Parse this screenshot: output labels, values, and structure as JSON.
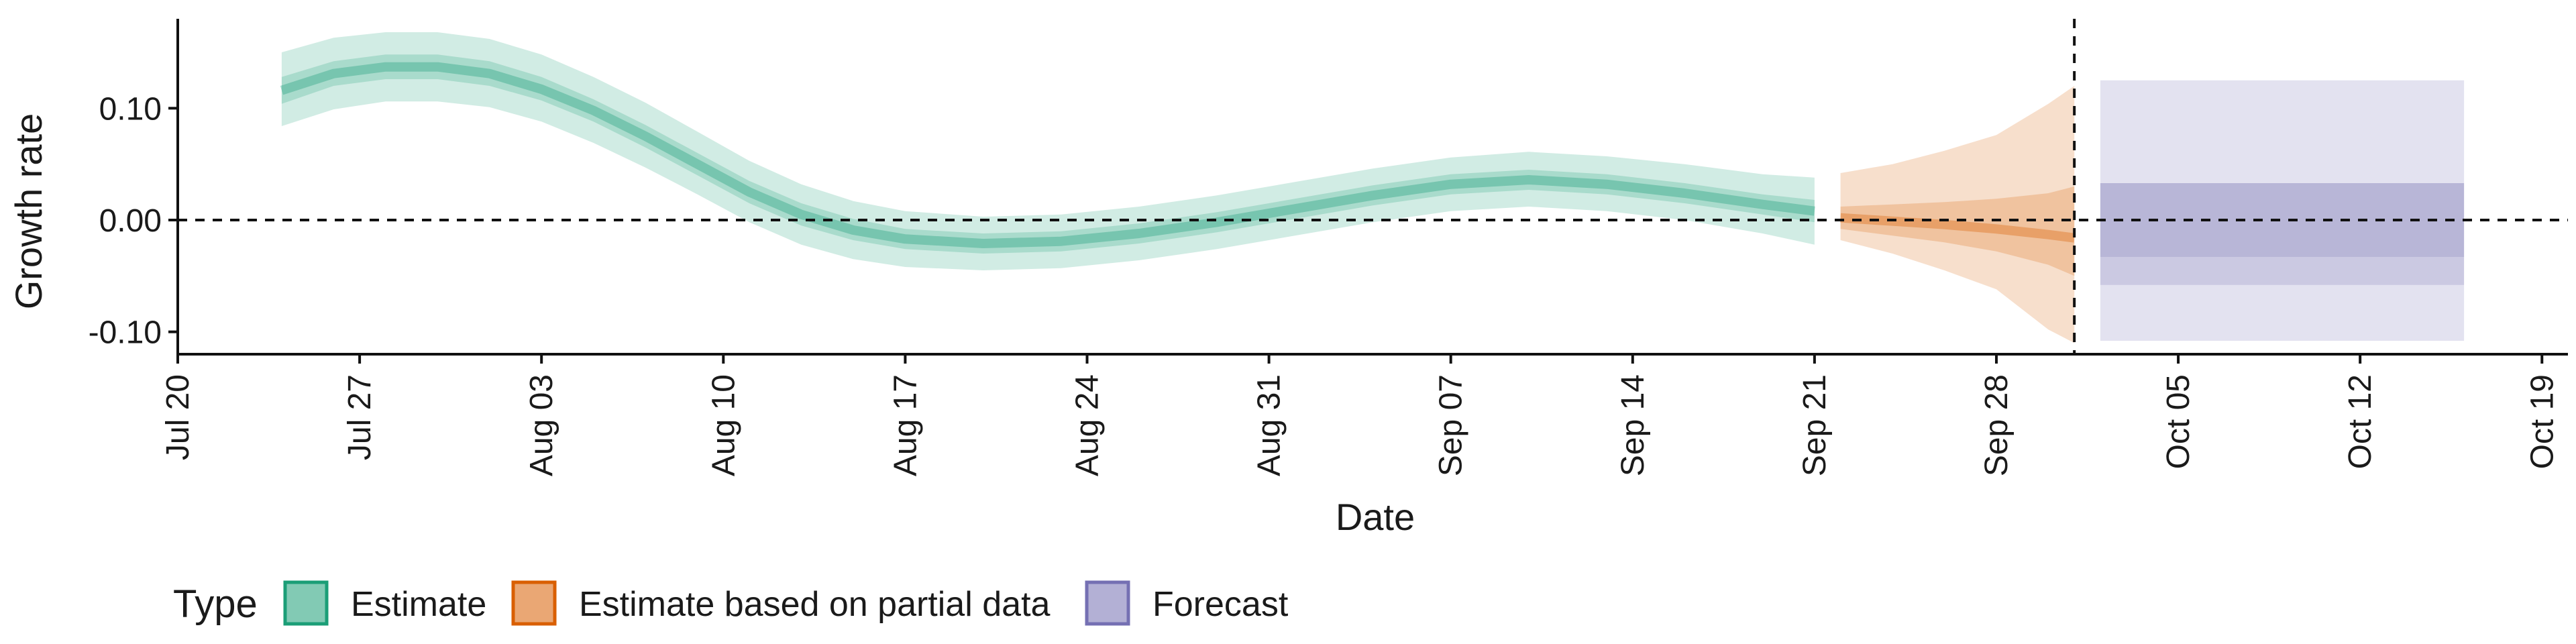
{
  "chart_data": {
    "type": "area",
    "title": "",
    "xlabel": "Date",
    "ylabel": "Growth rate",
    "x_tick_labels": [
      "Jul 20",
      "Jul 27",
      "Aug 03",
      "Aug 10",
      "Aug 17",
      "Aug 24",
      "Aug 31",
      "Sep 07",
      "Sep 14",
      "Sep 21",
      "Sep 28",
      "Oct 05",
      "Oct 12",
      "Oct 19"
    ],
    "x_ticks": [
      "2020-07-20",
      "2020-07-27",
      "2020-08-03",
      "2020-08-10",
      "2020-08-17",
      "2020-08-24",
      "2020-08-31",
      "2020-09-07",
      "2020-09-14",
      "2020-09-21",
      "2020-09-28",
      "2020-10-05",
      "2020-10-12",
      "2020-10-19"
    ],
    "y_tick_labels": [
      "-0.10",
      "0.00",
      "0.10"
    ],
    "y_ticks": [
      -0.1,
      0.0,
      0.1
    ],
    "xlim": [
      "2020-07-20",
      "2020-10-20"
    ],
    "ylim": [
      -0.12,
      0.18
    ],
    "hline": {
      "y": 0,
      "style": "dashed"
    },
    "vline": {
      "x": "2020-10-01",
      "style": "dashed"
    },
    "grid": false,
    "legend": {
      "title": "Type",
      "position": "bottom-left",
      "items": [
        {
          "label": "Estimate",
          "fill": "#1b9e77",
          "stroke": "#1b9e77"
        },
        {
          "label": "Estimate based on partial data",
          "fill": "#d95f02",
          "stroke": "#d95f02"
        },
        {
          "label": "Forecast",
          "fill": "#7570b3",
          "stroke": "#7570b3"
        }
      ]
    },
    "series": [
      {
        "name": "Estimate",
        "color": "#1b9e77",
        "points": [
          {
            "x": "2020-07-24",
            "mid": 0.116,
            "lo90": 0.084,
            "hi90": 0.15,
            "lo50": 0.104,
            "hi50": 0.128
          },
          {
            "x": "2020-07-26",
            "mid": 0.131,
            "lo90": 0.099,
            "hi90": 0.163,
            "lo50": 0.12,
            "hi50": 0.142
          },
          {
            "x": "2020-07-28",
            "mid": 0.137,
            "lo90": 0.106,
            "hi90": 0.168,
            "lo50": 0.126,
            "hi50": 0.148
          },
          {
            "x": "2020-07-30",
            "mid": 0.137,
            "lo90": 0.106,
            "hi90": 0.168,
            "lo50": 0.126,
            "hi50": 0.148
          },
          {
            "x": "2020-08-01",
            "mid": 0.131,
            "lo90": 0.101,
            "hi90": 0.162,
            "lo50": 0.12,
            "hi50": 0.142
          },
          {
            "x": "2020-08-03",
            "mid": 0.117,
            "lo90": 0.088,
            "hi90": 0.148,
            "lo50": 0.107,
            "hi50": 0.128
          },
          {
            "x": "2020-08-05",
            "mid": 0.098,
            "lo90": 0.069,
            "hi90": 0.128,
            "lo50": 0.088,
            "hi50": 0.108
          },
          {
            "x": "2020-08-07",
            "mid": 0.075,
            "lo90": 0.047,
            "hi90": 0.105,
            "lo50": 0.065,
            "hi50": 0.085
          },
          {
            "x": "2020-08-09",
            "mid": 0.05,
            "lo90": 0.023,
            "hi90": 0.079,
            "lo50": 0.04,
            "hi50": 0.06
          },
          {
            "x": "2020-08-11",
            "mid": 0.025,
            "lo90": -0.002,
            "hi90": 0.053,
            "lo50": 0.015,
            "hi50": 0.035
          },
          {
            "x": "2020-08-13",
            "mid": 0.005,
            "lo90": -0.022,
            "hi90": 0.032,
            "lo50": -0.005,
            "hi50": 0.015
          },
          {
            "x": "2020-08-15",
            "mid": -0.009,
            "lo90": -0.035,
            "hi90": 0.017,
            "lo50": -0.018,
            "hi50": 0.001
          },
          {
            "x": "2020-08-17",
            "mid": -0.017,
            "lo90": -0.042,
            "hi90": 0.008,
            "lo50": -0.026,
            "hi50": -0.008
          },
          {
            "x": "2020-08-20",
            "mid": -0.021,
            "lo90": -0.045,
            "hi90": 0.003,
            "lo50": -0.03,
            "hi50": -0.012
          },
          {
            "x": "2020-08-23",
            "mid": -0.019,
            "lo90": -0.043,
            "hi90": 0.005,
            "lo50": -0.028,
            "hi50": -0.01
          },
          {
            "x": "2020-08-26",
            "mid": -0.012,
            "lo90": -0.036,
            "hi90": 0.012,
            "lo50": -0.021,
            "hi50": -0.003
          },
          {
            "x": "2020-08-29",
            "mid": -0.002,
            "lo90": -0.026,
            "hi90": 0.022,
            "lo50": -0.011,
            "hi50": 0.007
          },
          {
            "x": "2020-09-01",
            "mid": 0.01,
            "lo90": -0.014,
            "hi90": 0.034,
            "lo50": 0.001,
            "hi50": 0.019
          },
          {
            "x": "2020-09-04",
            "mid": 0.022,
            "lo90": -0.002,
            "hi90": 0.046,
            "lo50": 0.013,
            "hi50": 0.031
          },
          {
            "x": "2020-09-07",
            "mid": 0.032,
            "lo90": 0.008,
            "hi90": 0.056,
            "lo50": 0.023,
            "hi50": 0.041
          },
          {
            "x": "2020-09-10",
            "mid": 0.036,
            "lo90": 0.012,
            "hi90": 0.061,
            "lo50": 0.027,
            "hi50": 0.045
          },
          {
            "x": "2020-09-13",
            "mid": 0.032,
            "lo90": 0.008,
            "hi90": 0.057,
            "lo50": 0.023,
            "hi50": 0.041
          },
          {
            "x": "2020-09-16",
            "mid": 0.024,
            "lo90": 0.0,
            "hi90": 0.05,
            "lo50": 0.015,
            "hi50": 0.033
          },
          {
            "x": "2020-09-19",
            "mid": 0.014,
            "lo90": -0.012,
            "hi90": 0.041,
            "lo50": 0.005,
            "hi50": 0.023
          },
          {
            "x": "2020-09-21",
            "mid": 0.008,
            "lo90": -0.022,
            "hi90": 0.038,
            "lo50": -0.002,
            "hi50": 0.018
          }
        ]
      },
      {
        "name": "Estimate based on partial data",
        "color": "#d95f02",
        "points": [
          {
            "x": "2020-09-22",
            "mid": 0.002,
            "lo90": -0.018,
            "hi90": 0.042,
            "lo50": -0.008,
            "hi50": 0.012
          },
          {
            "x": "2020-09-24",
            "mid": -0.001,
            "lo90": -0.03,
            "hi90": 0.05,
            "lo50": -0.014,
            "hi50": 0.014
          },
          {
            "x": "2020-09-26",
            "mid": -0.004,
            "lo90": -0.045,
            "hi90": 0.062,
            "lo50": -0.02,
            "hi50": 0.016
          },
          {
            "x": "2020-09-28",
            "mid": -0.008,
            "lo90": -0.062,
            "hi90": 0.076,
            "lo50": -0.028,
            "hi50": 0.019
          },
          {
            "x": "2020-09-30",
            "mid": -0.013,
            "lo90": -0.098,
            "hi90": 0.104,
            "lo50": -0.04,
            "hi50": 0.024
          },
          {
            "x": "2020-10-01",
            "mid": -0.016,
            "lo90": -0.11,
            "hi90": 0.12,
            "lo50": -0.05,
            "hi50": 0.03
          }
        ]
      },
      {
        "name": "Forecast",
        "color": "#7570b3",
        "points": [
          {
            "x": "2020-10-02",
            "mid": 0.0,
            "lo90": -0.108,
            "hi90": 0.125,
            "lo50": -0.058,
            "hi50": 0.033,
            "lo20": -0.033,
            "hi20": 0.033
          },
          {
            "x": "2020-10-16",
            "mid": 0.0,
            "lo90": -0.108,
            "hi90": 0.125,
            "lo50": -0.058,
            "hi50": 0.033,
            "lo20": -0.033,
            "hi20": 0.033
          }
        ]
      }
    ]
  }
}
